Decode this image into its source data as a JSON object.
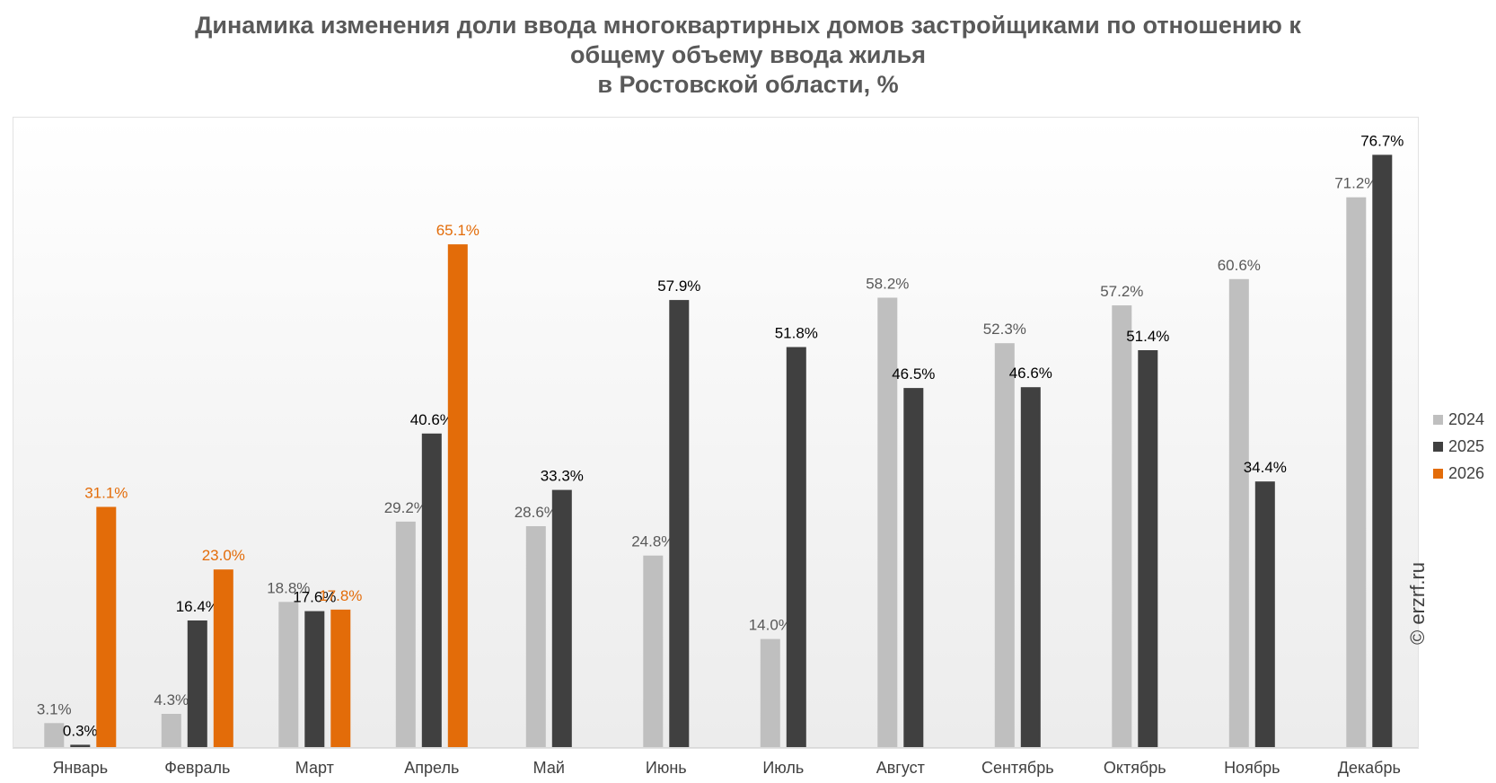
{
  "title_lines": [
    "Динамика изменения доли ввода многоквартирных домов застройщиками по отношению к",
    "общему объему ввода жилья",
    "в Ростовской области, %"
  ],
  "copyright": "© erzrf.ru",
  "colors": {
    "2024": "#bfbfbf",
    "2025": "#404040",
    "2026": "#e36c09"
  },
  "chart_data": {
    "type": "bar",
    "title": "Динамика изменения доли ввода многоквартирных домов застройщиками по отношению к общему объему ввода жилья в Ростовской области, %",
    "categories": [
      "Январь",
      "Февраль",
      "Март",
      "Апрель",
      "Май",
      "Июнь",
      "Июль",
      "Август",
      "Сентябрь",
      "Октябрь",
      "Ноябрь",
      "Декабрь"
    ],
    "series": [
      {
        "name": "2024",
        "values": [
          3.1,
          4.3,
          18.8,
          29.2,
          28.6,
          24.8,
          14.0,
          58.2,
          52.3,
          57.2,
          60.6,
          71.2
        ],
        "labels": [
          "3.1%",
          "4.3%",
          "18.8%",
          "29.2%",
          "28.6%",
          "24.8%",
          "14.0%",
          "58.2%",
          "52.3%",
          "57.2%",
          "60.6%",
          "71.2%"
        ]
      },
      {
        "name": "2025",
        "values": [
          0.3,
          16.4,
          17.6,
          40.6,
          33.3,
          57.9,
          51.8,
          46.5,
          46.6,
          51.4,
          34.4,
          76.7
        ],
        "labels": [
          "0.3%",
          "16.4%",
          "17.6%",
          "40.6%",
          "33.3%",
          "57.9%",
          "51.8%",
          "46.5%",
          "46.6%",
          "51.4%",
          "34.4%",
          "76.7%"
        ]
      },
      {
        "name": "2026",
        "values": [
          31.1,
          23.0,
          17.8,
          65.1,
          null,
          null,
          null,
          null,
          null,
          null,
          null,
          null
        ],
        "labels": [
          "31.1%",
          "23.0%",
          "17.8%",
          "65.1%",
          "",
          "",
          "",
          "",
          "",
          "",
          "",
          ""
        ]
      }
    ],
    "ylim": [
      0,
      85
    ],
    "xlabel": "",
    "ylabel": "",
    "grid": false,
    "legend_position": "right"
  }
}
